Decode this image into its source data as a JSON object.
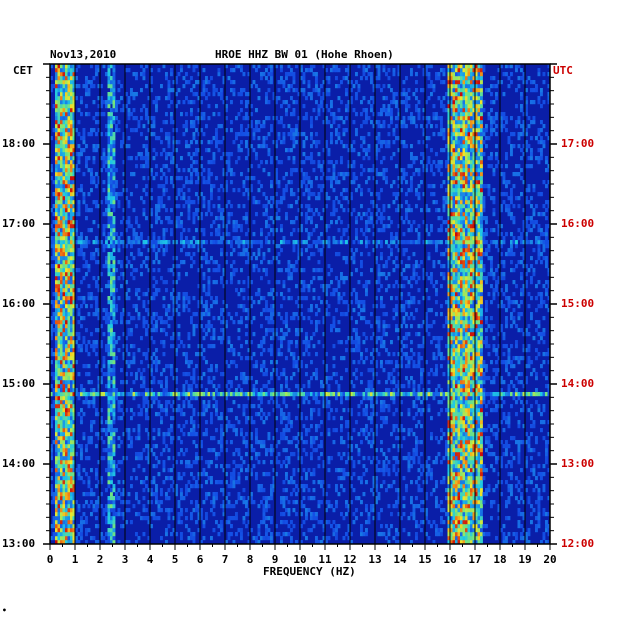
{
  "header": {
    "date": "Nov13,2010",
    "title": "HROE HHZ BW 01 (Hohe Rhoen)",
    "left_tz": "CET",
    "right_tz": "UTC"
  },
  "colors": {
    "background_blue": "#0a1ea8",
    "grid": "#000000",
    "utc_labels": "#cc0000"
  },
  "chart_data": {
    "type": "heatmap",
    "title": "HROE HHZ BW 01 (Hohe Rhoen)",
    "xlabel": "FREQUENCY (HZ)",
    "xlim": [
      0,
      20
    ],
    "x_ticks": [
      "0",
      "1",
      "2",
      "3",
      "4",
      "5",
      "6",
      "7",
      "8",
      "9",
      "10",
      "11",
      "12",
      "13",
      "14",
      "15",
      "16",
      "17",
      "18",
      "19",
      "20"
    ],
    "y_left_label": "CET",
    "y_right_label": "UTC",
    "y_left_ticks": [
      "18:00",
      "17:00",
      "16:00",
      "15:00",
      "14:00",
      "13:00"
    ],
    "y_right_ticks": [
      "17:00",
      "16:00",
      "15:00",
      "14:00",
      "13:00",
      "12:00"
    ],
    "time_range_cet": [
      "13:00",
      "19:00"
    ],
    "bands": [
      {
        "freq_min": 0.2,
        "freq_max": 0.9,
        "intensity": "high"
      },
      {
        "freq_min": 2.4,
        "freq_max": 2.6,
        "intensity": "medium"
      },
      {
        "freq_min": 15.9,
        "freq_max": 17.2,
        "intensity": "high"
      }
    ],
    "events": [
      {
        "time_cet": "16:45",
        "intensity": "medium"
      },
      {
        "time_cet": "14:50",
        "intensity": "high"
      }
    ]
  }
}
